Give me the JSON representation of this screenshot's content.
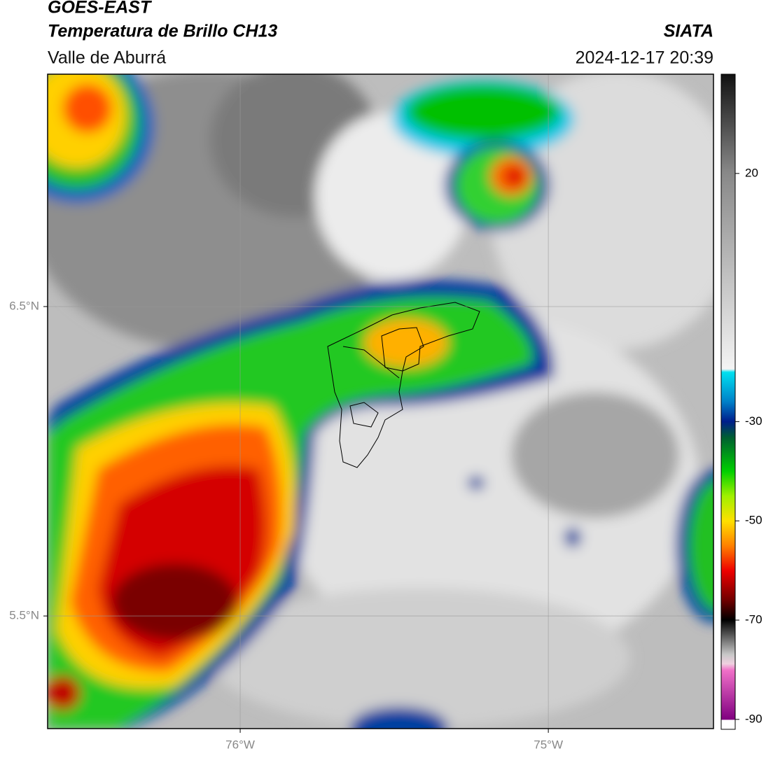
{
  "header": {
    "title": "GOES-EAST",
    "subtitle": "Temperatura de Brillo CH13",
    "region": "Valle de Aburrá",
    "source": "SIATA",
    "datetime": "2024-12-17 20:39"
  },
  "map": {
    "xlim": [
      -76.625,
      -74.464
    ],
    "ylim": [
      5.136,
      7.251
    ],
    "xticks": [
      {
        "value": -76,
        "label": "76°W"
      },
      {
        "value": -75,
        "label": "75°W"
      }
    ],
    "yticks": [
      {
        "value": 6.5,
        "label": "6.5°N"
      },
      {
        "value": 5.5,
        "label": "5.5°N"
      }
    ],
    "grid": true
  },
  "colorbar": {
    "lim": [
      -92,
      40
    ],
    "ticks": [
      20,
      -30,
      -50,
      -70,
      -90
    ]
  }
}
